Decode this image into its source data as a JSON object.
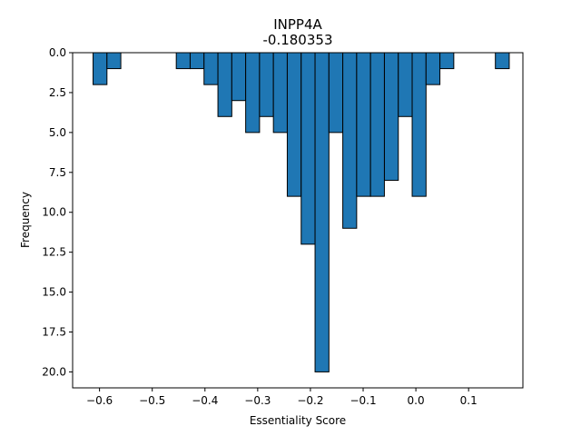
{
  "chart_data": {
    "type": "bar",
    "title": "INPP4A",
    "subtitle": "-0.180353",
    "xlabel": "Essentiality Score",
    "ylabel": "Frequency",
    "y_inverted": true,
    "xlim": [
      -0.651,
      0.203
    ],
    "ylim": [
      0,
      21
    ],
    "bar_color": "#1f77b4",
    "edge_color": "#000000",
    "bin_width": 0.0263,
    "x_ticks": [
      -0.6,
      -0.5,
      -0.4,
      -0.3,
      -0.2,
      -0.1,
      0.0,
      0.1
    ],
    "x_tick_labels": [
      "−0.6",
      "−0.5",
      "−0.4",
      "−0.3",
      "−0.2",
      "−0.1",
      "0.0",
      "0.1"
    ],
    "y_ticks": [
      0,
      2.5,
      5,
      7.5,
      10,
      12.5,
      15,
      17.5,
      20
    ],
    "y_tick_labels": [
      "0.0",
      "2.5",
      "5.0",
      "7.5",
      "10.0",
      "12.5",
      "15.0",
      "17.5",
      "20.0"
    ],
    "bins": [
      {
        "x0": -0.6122,
        "count": 2
      },
      {
        "x0": -0.5859,
        "count": 1
      },
      {
        "x0": -0.5596,
        "count": 0
      },
      {
        "x0": -0.5333,
        "count": 0
      },
      {
        "x0": -0.507,
        "count": 0
      },
      {
        "x0": -0.4807,
        "count": 0
      },
      {
        "x0": -0.4544,
        "count": 1
      },
      {
        "x0": -0.4281,
        "count": 1
      },
      {
        "x0": -0.4018,
        "count": 2
      },
      {
        "x0": -0.3754,
        "count": 4
      },
      {
        "x0": -0.3491,
        "count": 3
      },
      {
        "x0": -0.3228,
        "count": 5
      },
      {
        "x0": -0.2965,
        "count": 4
      },
      {
        "x0": -0.2702,
        "count": 5
      },
      {
        "x0": -0.2439,
        "count": 9
      },
      {
        "x0": -0.2175,
        "count": 12
      },
      {
        "x0": -0.1912,
        "count": 20
      },
      {
        "x0": -0.1649,
        "count": 5
      },
      {
        "x0": -0.1386,
        "count": 11
      },
      {
        "x0": -0.1123,
        "count": 9
      },
      {
        "x0": -0.086,
        "count": 9
      },
      {
        "x0": -0.0596,
        "count": 8
      },
      {
        "x0": -0.0333,
        "count": 4
      },
      {
        "x0": -0.007,
        "count": 9
      },
      {
        "x0": 0.0193,
        "count": 2
      },
      {
        "x0": 0.0456,
        "count": 1
      },
      {
        "x0": 0.0719,
        "count": 0
      },
      {
        "x0": 0.0982,
        "count": 0
      },
      {
        "x0": 0.1245,
        "count": 0
      },
      {
        "x0": 0.1508,
        "count": 1
      }
    ]
  }
}
